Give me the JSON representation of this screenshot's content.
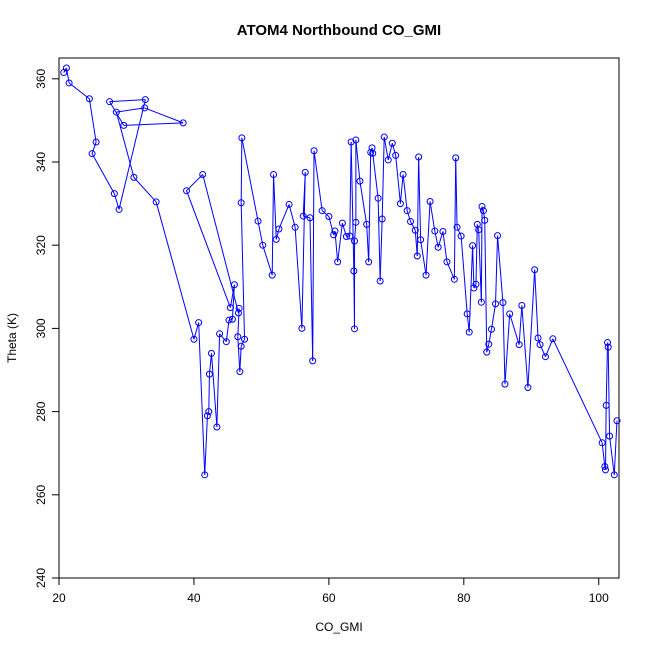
{
  "chart_data": {
    "type": "scatter",
    "title": "ATOM4 Northbound CO_GMI",
    "xlabel": "CO_GMI",
    "ylabel": "Theta (K)",
    "xlim": [
      20,
      103
    ],
    "ylim": [
      240,
      365
    ],
    "x_ticks": [
      20,
      40,
      60,
      80,
      100
    ],
    "y_ticks": [
      240,
      260,
      280,
      300,
      320,
      340,
      360
    ],
    "grid": false,
    "legend": "none",
    "colors": {
      "series": "#0000ff",
      "axes": "#000000",
      "background": "#ffffff"
    },
    "series": [
      {
        "points": [
          [
            20.7,
            361.5
          ],
          [
            21.1,
            362.6
          ],
          [
            21.5,
            359.0
          ],
          [
            24.5,
            355.2
          ],
          [
            25.5,
            344.8
          ],
          [
            24.9,
            342.0
          ],
          [
            28.2,
            332.4
          ],
          [
            28.9,
            328.6
          ],
          [
            32.8,
            355.0
          ],
          [
            27.5,
            354.5
          ],
          [
            29.6,
            348.8
          ],
          [
            38.4,
            349.4
          ],
          [
            32.7,
            353.0
          ],
          [
            28.5,
            352.0
          ],
          [
            31.1,
            336.3
          ],
          [
            34.4,
            330.4
          ],
          [
            40.0,
            297.4
          ],
          [
            40.7,
            301.4
          ],
          [
            41.6,
            264.8
          ],
          [
            42.0,
            279.0
          ],
          [
            42.2,
            280.0
          ],
          [
            42.3,
            289.0
          ],
          [
            42.6,
            294.0
          ],
          [
            43.4,
            276.3
          ],
          [
            43.8,
            298.7
          ],
          [
            44.8,
            296.8
          ],
          [
            45.2,
            302.0
          ],
          [
            45.7,
            302.2
          ],
          [
            46.0,
            310.5
          ],
          [
            45.4,
            305.0
          ],
          [
            38.9,
            333.1
          ],
          [
            41.3,
            337.0
          ],
          [
            46.6,
            303.7
          ],
          [
            46.7,
            304.8
          ],
          [
            46.5,
            298.0
          ],
          [
            46.8,
            289.6
          ],
          [
            47.0,
            295.7
          ],
          [
            47.5,
            297.4
          ],
          [
            47.0,
            330.2
          ],
          [
            47.1,
            345.8
          ],
          [
            49.5,
            325.8
          ],
          [
            50.2,
            320.0
          ],
          [
            51.6,
            312.8
          ],
          [
            51.8,
            337.0
          ],
          [
            52.2,
            321.4
          ],
          [
            52.6,
            323.9
          ],
          [
            54.1,
            329.8
          ],
          [
            55.0,
            324.3
          ],
          [
            56.0,
            300.0
          ],
          [
            56.5,
            337.5
          ],
          [
            56.2,
            327.0
          ],
          [
            57.2,
            326.6
          ],
          [
            57.6,
            292.2
          ],
          [
            57.8,
            342.7
          ],
          [
            59.0,
            328.3
          ],
          [
            60.0,
            326.9
          ],
          [
            60.7,
            322.5
          ],
          [
            60.9,
            323.4
          ],
          [
            61.3,
            316.0
          ],
          [
            62.0,
            325.3
          ],
          [
            62.6,
            322.1
          ],
          [
            63.1,
            322.2
          ],
          [
            63.3,
            344.8
          ],
          [
            63.7,
            313.8
          ],
          [
            63.8,
            299.9
          ],
          [
            63.8,
            321.0
          ],
          [
            64.0,
            325.5
          ],
          [
            64.0,
            345.3
          ],
          [
            64.6,
            335.4
          ],
          [
            65.6,
            325.0
          ],
          [
            65.9,
            316.0
          ],
          [
            66.2,
            342.3
          ],
          [
            66.4,
            343.4
          ],
          [
            66.5,
            342.1
          ],
          [
            67.3,
            331.3
          ],
          [
            67.6,
            311.4
          ],
          [
            67.9,
            326.3
          ],
          [
            68.2,
            346.0
          ],
          [
            68.8,
            340.5
          ],
          [
            69.4,
            344.5
          ],
          [
            69.9,
            341.6
          ],
          [
            70.6,
            330.0
          ],
          [
            71.0,
            337.0
          ],
          [
            71.6,
            328.3
          ],
          [
            72.1,
            325.7
          ],
          [
            72.8,
            323.6
          ],
          [
            73.1,
            317.4
          ],
          [
            73.3,
            341.2
          ],
          [
            73.6,
            321.3
          ],
          [
            74.4,
            312.8
          ],
          [
            75.0,
            330.5
          ],
          [
            75.7,
            323.4
          ],
          [
            76.2,
            319.5
          ],
          [
            76.9,
            323.3
          ],
          [
            77.5,
            316.0
          ],
          [
            78.6,
            311.8
          ],
          [
            78.8,
            341.0
          ],
          [
            79.0,
            324.3
          ],
          [
            79.6,
            322.2
          ],
          [
            80.5,
            303.5
          ],
          [
            80.8,
            299.1
          ],
          [
            81.3,
            319.9
          ],
          [
            81.5,
            309.7
          ],
          [
            81.8,
            310.6
          ],
          [
            82.0,
            325.0
          ],
          [
            82.2,
            323.7
          ],
          [
            82.6,
            306.3
          ],
          [
            82.7,
            329.3
          ],
          [
            82.9,
            328.3
          ],
          [
            83.1,
            326.0
          ],
          [
            83.4,
            294.3
          ],
          [
            83.7,
            296.2
          ],
          [
            84.1,
            299.8
          ],
          [
            84.7,
            305.9
          ],
          [
            85.0,
            322.3
          ],
          [
            85.8,
            306.2
          ],
          [
            86.1,
            286.6
          ],
          [
            86.8,
            303.5
          ],
          [
            88.2,
            296.1
          ],
          [
            88.6,
            305.5
          ],
          [
            89.5,
            285.8
          ],
          [
            90.5,
            314.1
          ],
          [
            91.0,
            297.7
          ],
          [
            91.3,
            296.1
          ],
          [
            92.1,
            293.2
          ],
          [
            93.2,
            297.5
          ],
          [
            100.5,
            272.5
          ],
          [
            100.9,
            266.8
          ],
          [
            101.0,
            266.0
          ],
          [
            101.1,
            281.5
          ],
          [
            101.3,
            296.6
          ],
          [
            101.4,
            295.5
          ],
          [
            101.6,
            274.1
          ],
          [
            102.3,
            264.8
          ],
          [
            102.7,
            277.8
          ]
        ]
      }
    ]
  }
}
